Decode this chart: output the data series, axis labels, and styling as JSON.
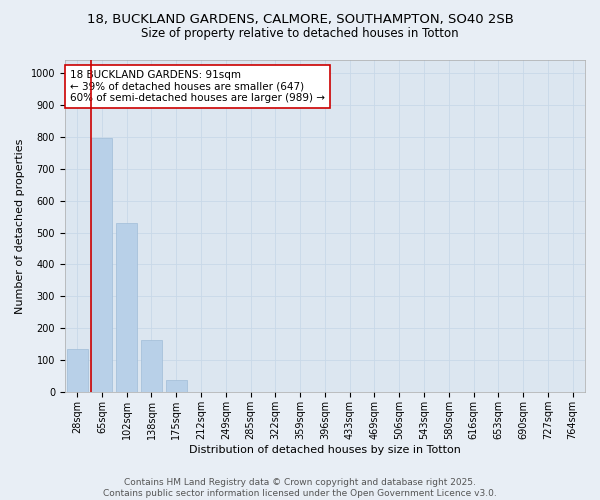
{
  "title1": "18, BUCKLAND GARDENS, CALMORE, SOUTHAMPTON, SO40 2SB",
  "title2": "Size of property relative to detached houses in Totton",
  "xlabel": "Distribution of detached houses by size in Totton",
  "ylabel": "Number of detached properties",
  "categories": [
    "28sqm",
    "65sqm",
    "102sqm",
    "138sqm",
    "175sqm",
    "212sqm",
    "249sqm",
    "285sqm",
    "322sqm",
    "359sqm",
    "396sqm",
    "433sqm",
    "469sqm",
    "506sqm",
    "543sqm",
    "580sqm",
    "616sqm",
    "653sqm",
    "690sqm",
    "727sqm",
    "764sqm"
  ],
  "values": [
    135,
    795,
    530,
    163,
    37,
    0,
    0,
    0,
    0,
    0,
    0,
    0,
    0,
    0,
    0,
    0,
    0,
    0,
    0,
    0,
    0
  ],
  "bar_color": "#b8d0e8",
  "bar_edge_color": "#a0bdd8",
  "subject_line_color": "#cc0000",
  "annotation_text": "18 BUCKLAND GARDENS: 91sqm\n← 39% of detached houses are smaller (647)\n60% of semi-detached houses are larger (989) →",
  "annotation_box_color": "#ffffff",
  "annotation_box_edge": "#cc0000",
  "ylim": [
    0,
    1040
  ],
  "yticks": [
    0,
    100,
    200,
    300,
    400,
    500,
    600,
    700,
    800,
    900,
    1000
  ],
  "grid_color": "#c8d8e8",
  "bg_color": "#e8eef5",
  "plot_bg_color": "#dce6f0",
  "footer": "Contains HM Land Registry data © Crown copyright and database right 2025.\nContains public sector information licensed under the Open Government Licence v3.0.",
  "title_fontsize": 9.5,
  "subtitle_fontsize": 8.5,
  "axis_label_fontsize": 8,
  "tick_fontsize": 7,
  "annotation_fontsize": 7.5,
  "footer_fontsize": 6.5
}
